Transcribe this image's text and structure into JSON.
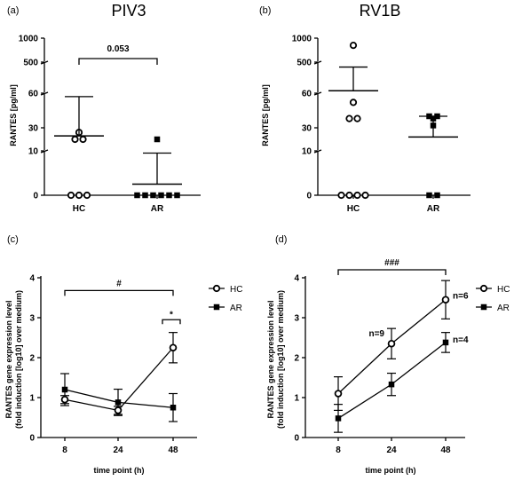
{
  "chart_data": [
    {
      "type": "scatter",
      "panel_label": "(a)",
      "title": "PIV3",
      "ylabel": "RANTES [pg/ml]",
      "categories": [
        "HC",
        "AR"
      ],
      "y_scale": "broken",
      "y_ticks": [
        "0",
        "10",
        "30",
        "60",
        "500",
        "1000"
      ],
      "series": [
        {
          "name": "HC",
          "values": [
            0,
            0,
            0,
            20,
            20,
            26
          ],
          "mean": 23,
          "sem_upper": 57,
          "marker": "open-circle"
        },
        {
          "name": "AR",
          "values": [
            0,
            0,
            0,
            0,
            0,
            0,
            20
          ],
          "mean": 2.5,
          "sem_upper": 9.5,
          "marker": "filled-square"
        }
      ],
      "significance": {
        "label": "0.053",
        "from": "HC",
        "to": "AR"
      }
    },
    {
      "type": "scatter",
      "panel_label": "(b)",
      "title": "RV1B",
      "ylabel": "RANTES [pg/ml]",
      "categories": [
        "HC",
        "AR"
      ],
      "y_scale": "broken",
      "y_ticks": [
        "0",
        "10",
        "30",
        "60",
        "500",
        "1000"
      ],
      "series": [
        {
          "name": "HC",
          "values": [
            0,
            0,
            0,
            0,
            38,
            38,
            52,
            850
          ],
          "mean": 95,
          "sem_upper": 430,
          "marker": "open-circle"
        },
        {
          "name": "AR",
          "values": [
            0,
            0,
            32,
            38,
            40,
            40
          ],
          "mean": 22,
          "sem_upper": 40,
          "marker": "filled-square"
        }
      ]
    },
    {
      "type": "line",
      "panel_label": "(c)",
      "ylabel": [
        "RANTES gene expression level",
        "(fold induction [log10] over medium)"
      ],
      "xlabel": "time point (h)",
      "x": [
        8,
        24,
        48
      ],
      "ylim": [
        0,
        4
      ],
      "y_ticks": [
        "0",
        "1",
        "2",
        "3",
        "4"
      ],
      "series": [
        {
          "name": "HC",
          "values": [
            0.95,
            0.68,
            2.25
          ],
          "err": [
            0.1,
            0.1,
            0.38
          ],
          "marker": "open-circle"
        },
        {
          "name": "AR",
          "values": [
            1.2,
            0.88,
            0.75
          ],
          "err": [
            0.4,
            0.33,
            0.35
          ],
          "marker": "filled-square"
        }
      ],
      "annotations": [
        {
          "text": "#",
          "from_x": 8,
          "to_x": 48,
          "y": 3.68
        },
        {
          "text": "*",
          "from_x": 48,
          "to_x": 48,
          "y": 2.95
        }
      ],
      "legend": {
        "position": "right",
        "entries": [
          "HC",
          "AR"
        ]
      }
    },
    {
      "type": "line",
      "panel_label": "(d)",
      "ylabel": [
        "RANTES gene expression level",
        "(fold induction [log10] over medium)"
      ],
      "xlabel": "time point (h)",
      "x": [
        8,
        24,
        48
      ],
      "ylim": [
        0,
        4
      ],
      "y_ticks": [
        "0",
        "1",
        "2",
        "3",
        "4"
      ],
      "series": [
        {
          "name": "HC",
          "values": [
            1.1,
            2.35,
            3.45
          ],
          "err": [
            0.42,
            0.38,
            0.48
          ],
          "marker": "open-circle"
        },
        {
          "name": "AR",
          "values": [
            0.48,
            1.33,
            2.38
          ],
          "err": [
            0.35,
            0.28,
            0.25
          ],
          "marker": "filled-square"
        }
      ],
      "annotations": [
        {
          "text": "###",
          "from_x": 8,
          "to_x": 48,
          "y": 4.2
        },
        {
          "text": "n=9",
          "x": 24,
          "y": 2.6
        },
        {
          "text": "n=6",
          "x": 48,
          "y": 3.55
        },
        {
          "text": "n=4",
          "x": 48,
          "y": 2.45
        }
      ],
      "legend": {
        "position": "right",
        "entries": [
          "HC",
          "AR"
        ]
      }
    }
  ]
}
